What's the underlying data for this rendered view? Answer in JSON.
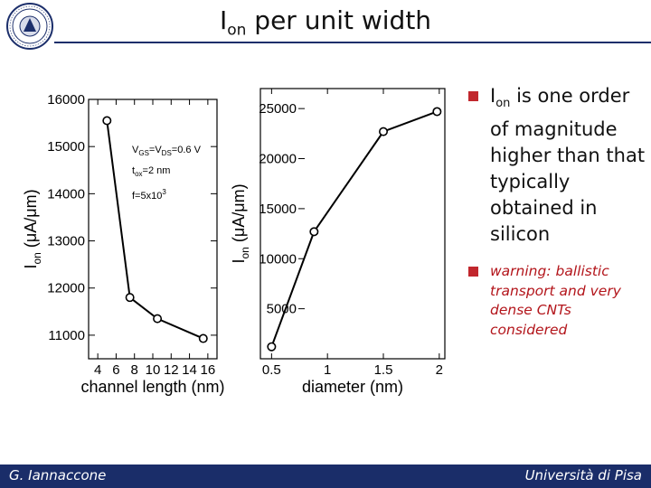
{
  "slide": {
    "title_main": "I",
    "title_sub": "on",
    "title_rest": " per unit width"
  },
  "bullets": {
    "b1_main": "I",
    "b1_sub": "on",
    "b1_rest": " is one order of magnitude higher than that typically obtained in silicon",
    "b2": "warning: ballistic transport and very dense CNTs considered"
  },
  "footer": {
    "author": "G. Iannaccone",
    "institution": "Università di Pisa"
  },
  "colors": {
    "accent": "#1a2d69",
    "bullet": "#c1272d",
    "warning": "#b3151b"
  },
  "icons": {
    "logo": "university-seal-icon",
    "bullet": "square-bullet-icon"
  },
  "chart_data": [
    {
      "type": "line",
      "xlabel": "channel length (nm)",
      "ylabel_main": "I",
      "ylabel_sub": "on",
      "ylabel_rest": " (μA/μm)",
      "xlim": [
        3,
        17
      ],
      "ylim": [
        10500,
        16000
      ],
      "xticks": [
        4,
        6,
        8,
        10,
        12,
        14,
        16
      ],
      "yticks": [
        11000,
        12000,
        13000,
        14000,
        15000,
        16000
      ],
      "x": [
        5,
        7.5,
        10.5,
        15.5
      ],
      "y": [
        15550,
        11800,
        11350,
        10930
      ],
      "annotations": {
        "line1": "V",
        "line1_s1": "GS",
        "line1_m": "=V",
        "line1_s2": "DS",
        "line1_r": "=0.6 V",
        "line2": "t",
        "line2_s": "ox",
        "line2_r": "=2 nm",
        "line3": "f=5x10",
        "line3_sup": "3"
      },
      "grid": false
    },
    {
      "type": "line",
      "xlabel": "diameter (nm)",
      "ylabel_main": "I",
      "ylabel_sub": "on",
      "ylabel_rest": " (μA/μm)",
      "xlim": [
        0.4,
        2.05
      ],
      "ylim": [
        0,
        27000
      ],
      "xticks": [
        0.5,
        1,
        1.5,
        2
      ],
      "xticklabels": [
        "0.5",
        "1",
        "1.5",
        "2"
      ],
      "yticks": [
        5000,
        10000,
        15000,
        20000,
        25000
      ],
      "x": [
        0.5,
        0.88,
        1.5,
        1.98
      ],
      "y": [
        1200,
        12700,
        22700,
        24700
      ],
      "grid": false
    }
  ]
}
